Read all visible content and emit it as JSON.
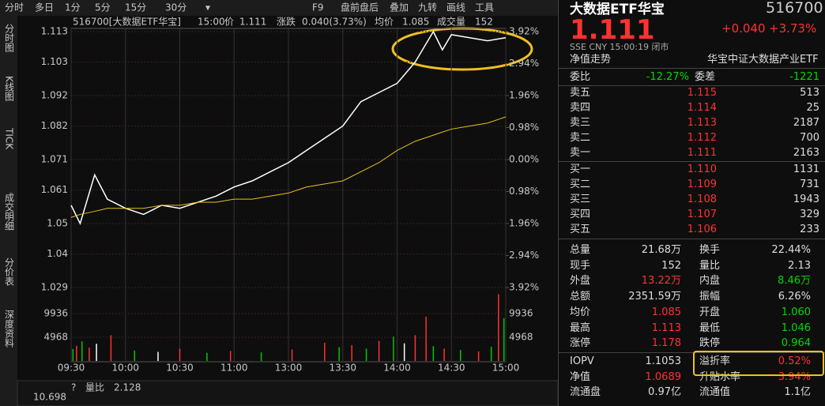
{
  "toolbar": {
    "left": [
      "分时",
      "多日",
      "1分",
      "5分",
      "15分",
      "30分",
      "▾"
    ],
    "right": [
      "F9",
      "盘前盘后",
      "叠加",
      "九转",
      "画线",
      "工具"
    ]
  },
  "sidebar": [
    "分时图",
    "K线图",
    "TICK",
    "成交明细",
    "分价表",
    "深度资料"
  ],
  "chart_data": {
    "type": "line",
    "header": [
      "516700[大数据ETF华宝]",
      "15:00",
      "价",
      "1.111",
      "涨跌",
      "0.040(3.73%)",
      "均价",
      "1.085",
      "成交量",
      "152"
    ],
    "x": [
      0,
      5,
      13,
      20,
      30,
      40,
      50,
      60,
      70,
      80,
      90,
      100,
      110,
      120,
      130,
      140,
      150,
      160,
      170,
      180,
      190,
      195,
      200,
      205,
      210,
      220,
      230,
      240
    ],
    "series": [
      {
        "name": "价",
        "color": "#ffffff",
        "values": [
          1.056,
          1.05,
          1.066,
          1.058,
          1.055,
          1.053,
          1.056,
          1.055,
          1.057,
          1.059,
          1.062,
          1.064,
          1.067,
          1.07,
          1.074,
          1.078,
          1.082,
          1.09,
          1.093,
          1.096,
          1.103,
          1.108,
          1.113,
          1.107,
          1.112,
          1.111,
          1.11,
          1.111
        ]
      },
      {
        "name": "均价",
        "color": "#e8c020",
        "values": [
          1.052,
          1.053,
          1.054,
          1.055,
          1.055,
          1.055,
          1.056,
          1.056,
          1.057,
          1.057,
          1.058,
          1.058,
          1.059,
          1.06,
          1.062,
          1.063,
          1.064,
          1.067,
          1.07,
          1.074,
          1.077,
          1.078,
          1.079,
          1.08,
          1.081,
          1.082,
          1.083,
          1.085
        ]
      }
    ],
    "xlim": [
      0,
      240
    ],
    "xticks": [
      {
        "value": 0,
        "label": "09:30"
      },
      {
        "value": 30,
        "label": "10:00"
      },
      {
        "value": 60,
        "label": "10:30"
      },
      {
        "value": 90,
        "label": "11:00"
      },
      {
        "value": 120,
        "label": "13:00"
      },
      {
        "value": 150,
        "label": "13:30"
      },
      {
        "value": 180,
        "label": "14:00"
      },
      {
        "value": 210,
        "label": "14:30"
      },
      {
        "value": 240,
        "label": "15:00"
      }
    ],
    "ylim": [
      1.029,
      1.113
    ],
    "yticks": [
      1.113,
      1.103,
      1.092,
      1.082,
      1.071,
      1.061,
      1.05,
      1.04,
      1.029
    ],
    "y2lim": [
      -3.92,
      3.92
    ],
    "y2ticks": [
      {
        "value": 3.92,
        "label": "3.92%"
      },
      {
        "value": 2.94,
        "label": "2.94%"
      },
      {
        "value": 1.96,
        "label": "1.96%"
      },
      {
        "value": 0.98,
        "label": "0.98%"
      },
      {
        "value": 0,
        "label": "0.00%"
      },
      {
        "value": -0.98,
        "label": "0.98%"
      },
      {
        "value": -1.96,
        "label": "1.96%"
      },
      {
        "value": -2.94,
        "label": "2.94%"
      },
      {
        "value": -3.92,
        "label": "3.92%"
      }
    ],
    "volume": {
      "x": [
        1,
        3,
        6,
        10,
        14,
        22,
        35,
        48,
        60,
        75,
        88,
        105,
        122,
        140,
        148,
        155,
        163,
        170,
        178,
        184,
        190,
        196,
        200,
        206,
        215,
        225,
        232,
        236,
        239
      ],
      "values": [
        2500,
        3200,
        4100,
        2800,
        3600,
        5400,
        2200,
        1900,
        2600,
        1700,
        2100,
        1800,
        2400,
        3800,
        2900,
        3300,
        2600,
        4200,
        5100,
        3700,
        5400,
        9300,
        3100,
        2600,
        2300,
        2000,
        3000,
        14000,
        9000
      ],
      "colors": [
        "#00c800",
        "#ff3232",
        "#00c800",
        "#ff3232",
        "#ffffff",
        "#ff3232",
        "#00c800",
        "#ffffff",
        "#ff3232",
        "#00c800",
        "#ff3232",
        "#00c800",
        "#ff3232",
        "#ff3232",
        "#00c800",
        "#ff3232",
        "#00c800",
        "#ff3232",
        "#00c800",
        "#ffffff",
        "#ff3232",
        "#ff3232",
        "#00c800",
        "#ff3232",
        "#00c800",
        "#ff3232",
        "#00c800",
        "#ff3232",
        "#00c800"
      ],
      "ylim": [
        0,
        14904
      ],
      "yticks": [
        9936,
        4968
      ]
    },
    "footer": [
      "?",
      "量比",
      "2.128",
      "10.698"
    ]
  },
  "panel": {
    "name": "大数据ETF华宝",
    "code": "516700",
    "price": "1.111",
    "change": "+0.040",
    "pct": "+3.73%",
    "meta": "SSE  CNY  15:00:19  闭市",
    "subtitle": [
      "净值走势",
      "华宝中证大数据产业ETF"
    ],
    "weibi": [
      "委比",
      "-12.27%",
      "委差",
      "-1221"
    ],
    "sells": [
      [
        "卖五",
        "1.115",
        "513"
      ],
      [
        "卖四",
        "1.114",
        "25"
      ],
      [
        "卖三",
        "1.113",
        "2187"
      ],
      [
        "卖二",
        "1.112",
        "700"
      ],
      [
        "卖一",
        "1.111",
        "2163"
      ]
    ],
    "buys": [
      [
        "买一",
        "1.110",
        "1131"
      ],
      [
        "买二",
        "1.109",
        "731"
      ],
      [
        "买三",
        "1.108",
        "1943"
      ],
      [
        "买四",
        "1.107",
        "329"
      ],
      [
        "买五",
        "1.106",
        "233"
      ]
    ],
    "stats": [
      [
        [
          "总量",
          "21.68万",
          "#ddd"
        ],
        [
          "换手",
          "22.44%",
          "#ddd"
        ]
      ],
      [
        [
          "现手",
          "152",
          "#ddd"
        ],
        [
          "量比",
          "2.13",
          "#ddd"
        ]
      ],
      [
        [
          "外盘",
          "13.22万",
          "#ff3232"
        ],
        [
          "内盘",
          "8.46万",
          "#00d800"
        ]
      ],
      [
        [
          "总额",
          "2351.59万",
          "#ddd"
        ],
        [
          "振幅",
          "6.26%",
          "#ddd"
        ]
      ],
      [
        [
          "均价",
          "1.085",
          "#ff3232"
        ],
        [
          "开盘",
          "1.060",
          "#00d800"
        ]
      ],
      [
        [
          "最高",
          "1.113",
          "#ff3232"
        ],
        [
          "最低",
          "1.046",
          "#00d800"
        ]
      ],
      [
        [
          "涨停",
          "1.178",
          "#ff3232"
        ],
        [
          "跌停",
          "0.964",
          "#00d800"
        ]
      ]
    ],
    "extra": [
      [
        [
          "IOPV",
          "1.1053",
          "#ddd"
        ],
        [
          "溢折率",
          "0.52%",
          "#ff3232"
        ]
      ],
      [
        [
          "净值",
          "1.0689",
          "#ff3232"
        ],
        [
          "升贴水率",
          "3.94%",
          "#ff3232"
        ]
      ],
      [
        [
          "流通盘",
          "0.97亿",
          "#ddd"
        ],
        [
          "流通值",
          "1.1亿",
          "#ddd"
        ]
      ]
    ]
  }
}
